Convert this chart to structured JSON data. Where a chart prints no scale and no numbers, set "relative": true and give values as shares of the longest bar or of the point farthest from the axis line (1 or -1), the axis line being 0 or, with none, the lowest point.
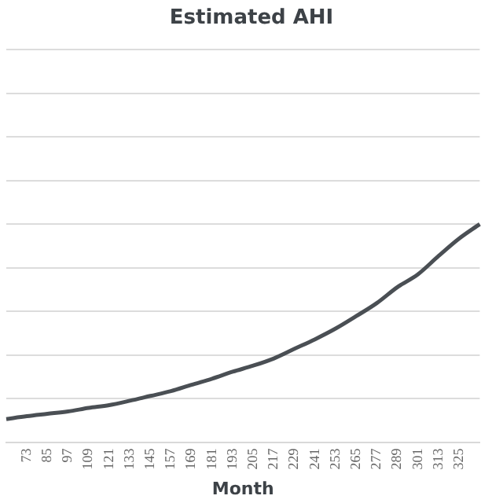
{
  "chart_data": {
    "type": "line",
    "title": "Estimated AHI",
    "xlabel": "Month",
    "relative": true,
    "grid": "y",
    "legend": false,
    "marker": "none",
    "line_style": "solid",
    "categories": [
      null,
      "73",
      "85",
      "97",
      "109",
      "121",
      "133",
      "145",
      "157",
      "169",
      "181",
      "193",
      "205",
      "217",
      "229",
      "241",
      "253",
      "265",
      "277",
      "289",
      "301",
      "313",
      "325",
      null
    ],
    "series": [
      {
        "color": "#4a4f54",
        "values": [
          0.106,
          0.119,
          0.13,
          0.141,
          0.157,
          0.17,
          0.19,
          0.212,
          0.234,
          0.263,
          0.291,
          0.323,
          0.351,
          0.384,
          0.428,
          0.472,
          0.521,
          0.578,
          0.638,
          0.711,
          0.77,
          0.854,
          0.934,
          1
        ]
      }
    ]
  }
}
